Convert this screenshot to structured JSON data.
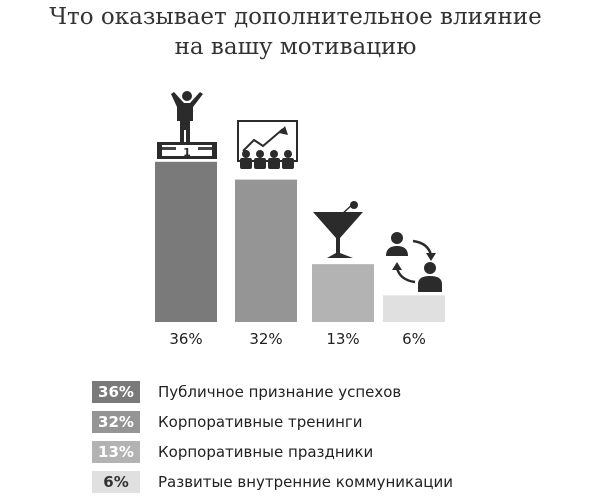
{
  "title": {
    "line1": "Что оказывает дополнительное влияние",
    "line2": "на вашу мотивацию"
  },
  "chart_data": {
    "type": "bar",
    "categories": [
      "Публичное признание успехов",
      "Корпоративные тренинги",
      "Корпоративные праздники",
      "Развитые внутренние коммуникации"
    ],
    "values": [
      36,
      32,
      13,
      6
    ],
    "value_labels": [
      "36%",
      "32%",
      "13%",
      "6%"
    ],
    "ylim": [
      0,
      40
    ],
    "grid": false,
    "legend_position": "bottom",
    "colors": [
      "#7a7a7a",
      "#959595",
      "#b3b3b3",
      "#e0e0e0"
    ],
    "label_text_colors": [
      "#ffffff",
      "#ffffff",
      "#ffffff",
      "#333333"
    ],
    "icons": [
      "podium-winner-icon",
      "presentation-growth-icon",
      "cocktail-glass-icon",
      "people-exchange-icon"
    ]
  }
}
